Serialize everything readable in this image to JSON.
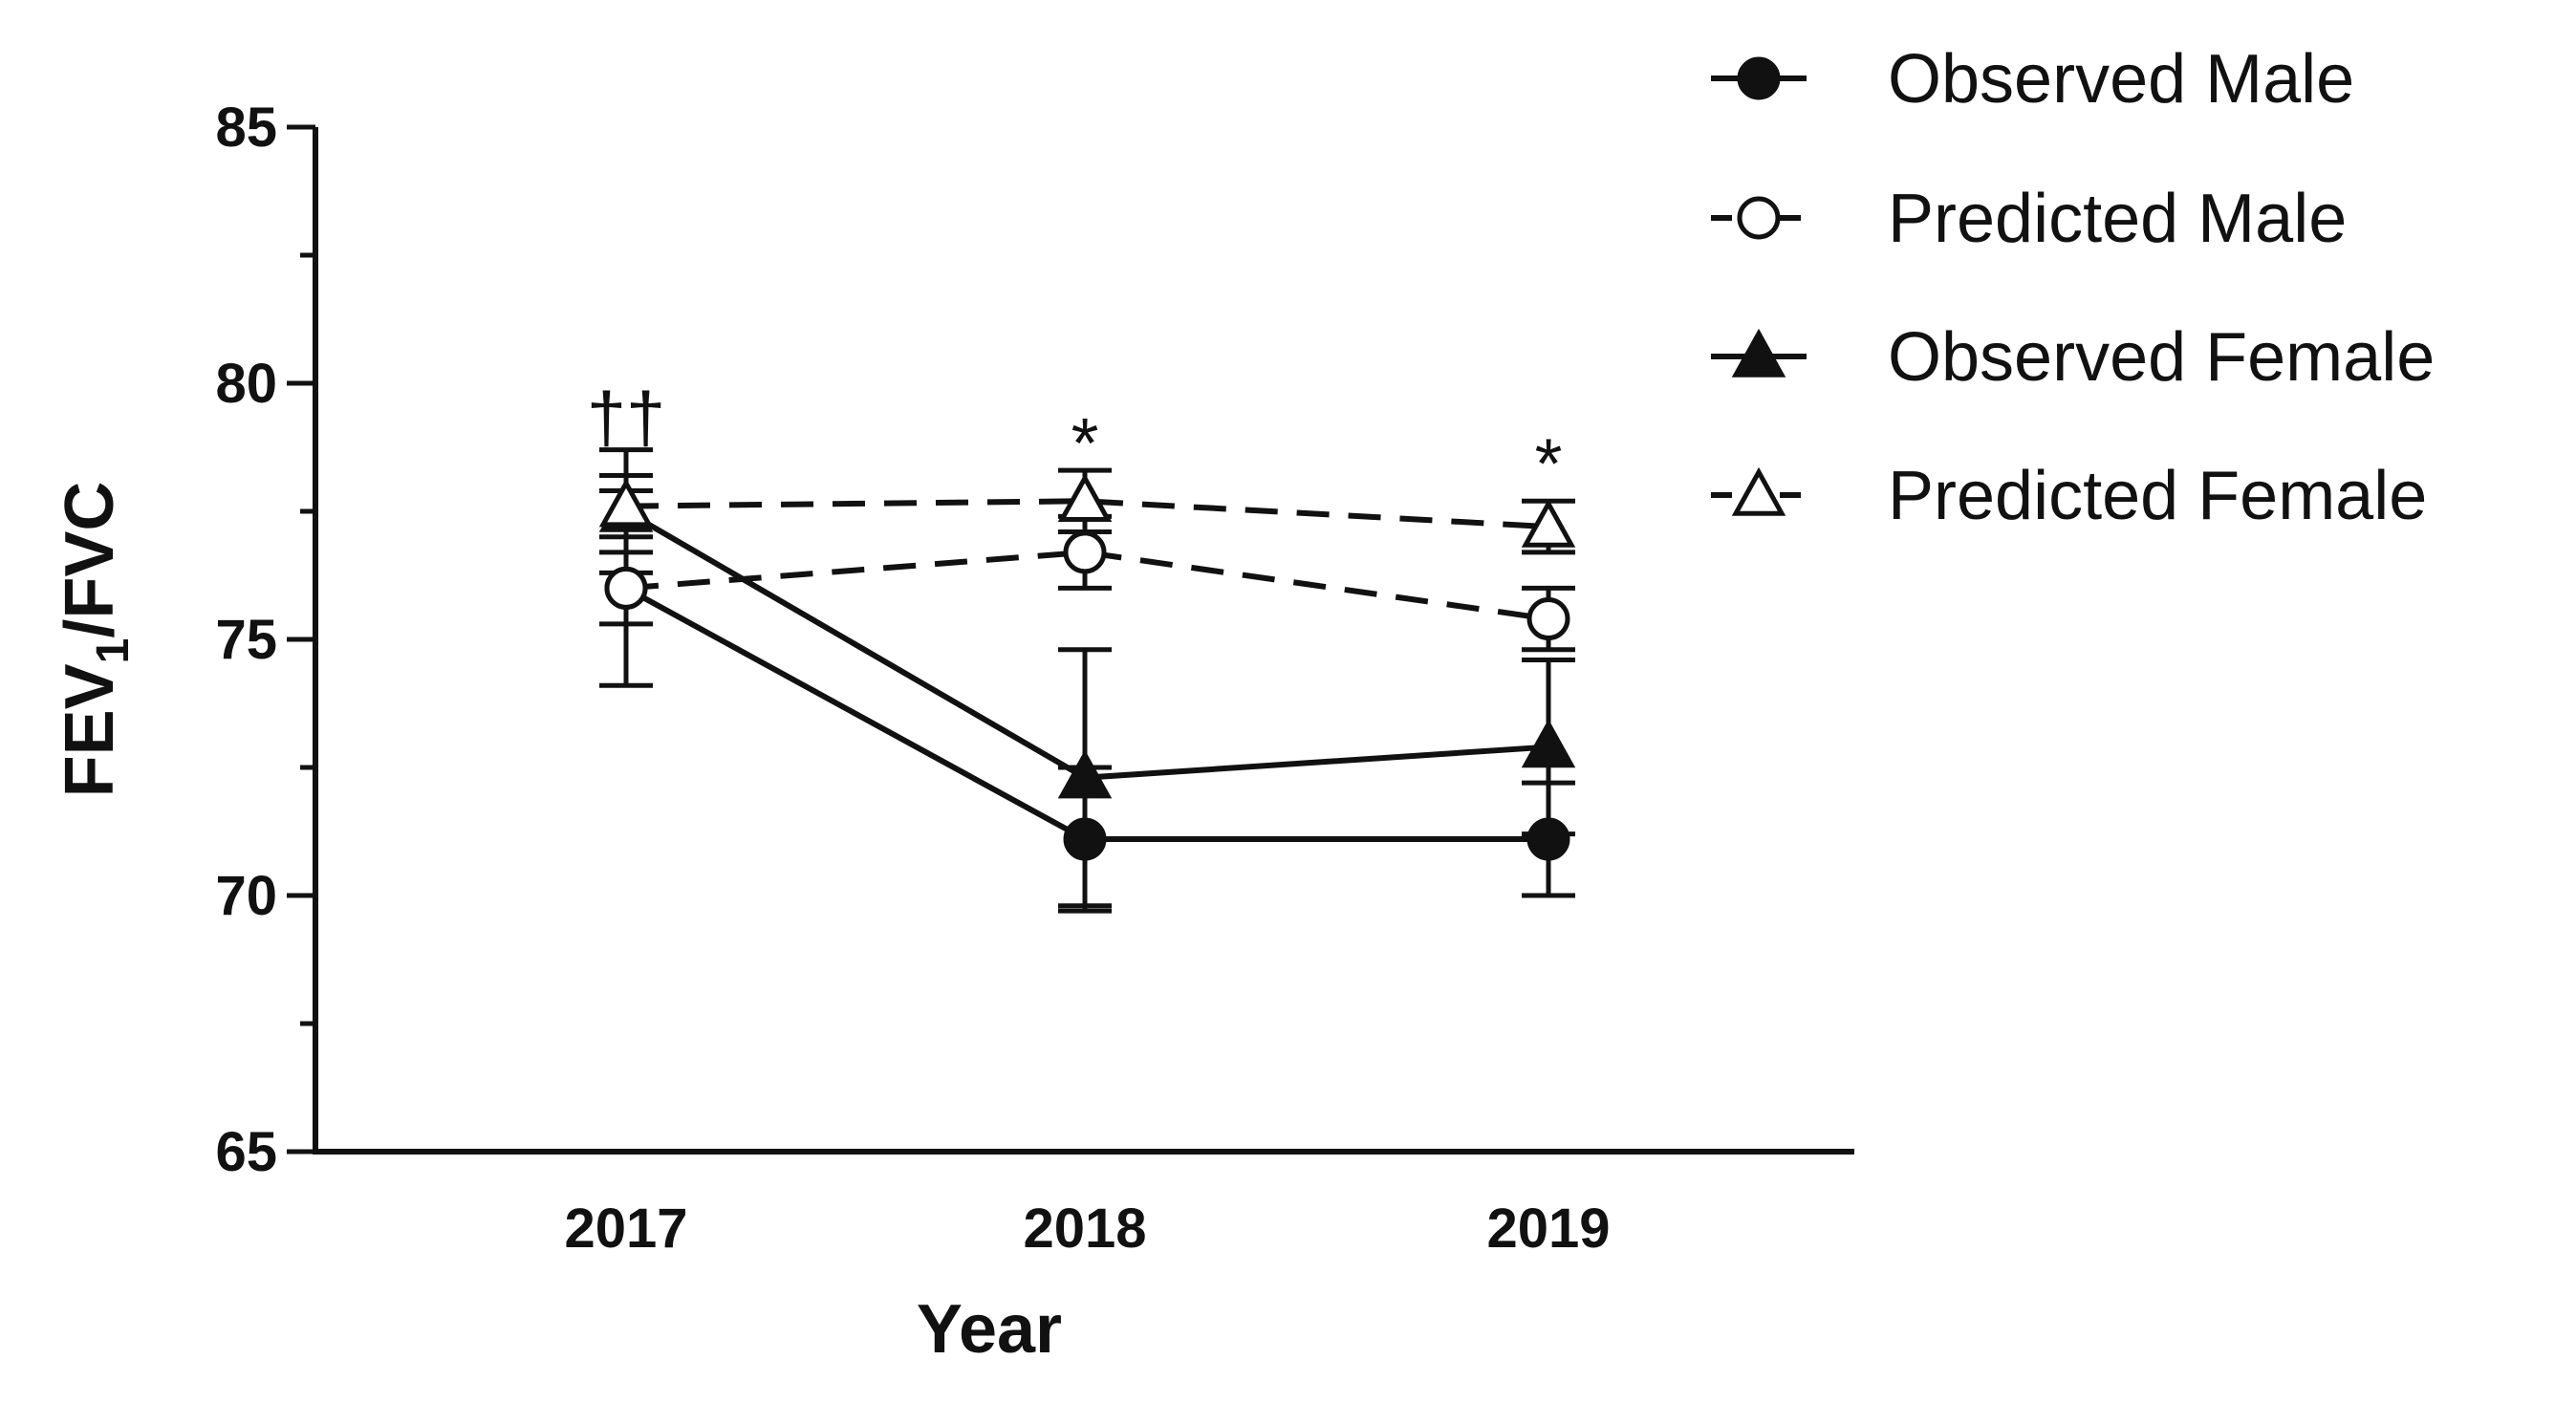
{
  "chart_data": {
    "type": "line",
    "title": "",
    "xlabel": "Year",
    "ylabel": {
      "prefix": "FEV",
      "sub": "1",
      "suffix": "/FVC"
    },
    "ylim": [
      65,
      85
    ],
    "y_ticks": [
      "65",
      "70",
      "75",
      "80",
      "85"
    ],
    "y_minor_step": 2.5,
    "categories": [
      "2017",
      "2018",
      "2019"
    ],
    "series": [
      {
        "name": "Observed Male",
        "marker": "circle",
        "filled": true,
        "dashed": false,
        "values": [
          76.0,
          71.1,
          71.1
        ],
        "err": [
          1.9,
          1.4,
          1.1
        ]
      },
      {
        "name": "Predicted Male",
        "marker": "circle",
        "filled": false,
        "dashed": true,
        "values": [
          76.0,
          76.7,
          75.4
        ],
        "err": [
          0.7,
          0.7,
          0.6
        ]
      },
      {
        "name": "Observed Female",
        "marker": "triangle",
        "filled": true,
        "dashed": false,
        "values": [
          77.5,
          72.3,
          72.9
        ],
        "err": [
          1.2,
          2.5,
          1.7
        ]
      },
      {
        "name": "Predicted Female",
        "marker": "triangle",
        "filled": false,
        "dashed": true,
        "values": [
          77.6,
          77.7,
          77.2
        ],
        "err": [
          0.6,
          0.6,
          0.5
        ]
      }
    ],
    "annotations": [
      {
        "category": "2017",
        "text": "††",
        "y": 79.6
      },
      {
        "category": "2018",
        "text": "*",
        "y": 79.1
      },
      {
        "category": "2019",
        "text": "*",
        "y": 78.7
      }
    ],
    "legend_position": "top-right"
  }
}
